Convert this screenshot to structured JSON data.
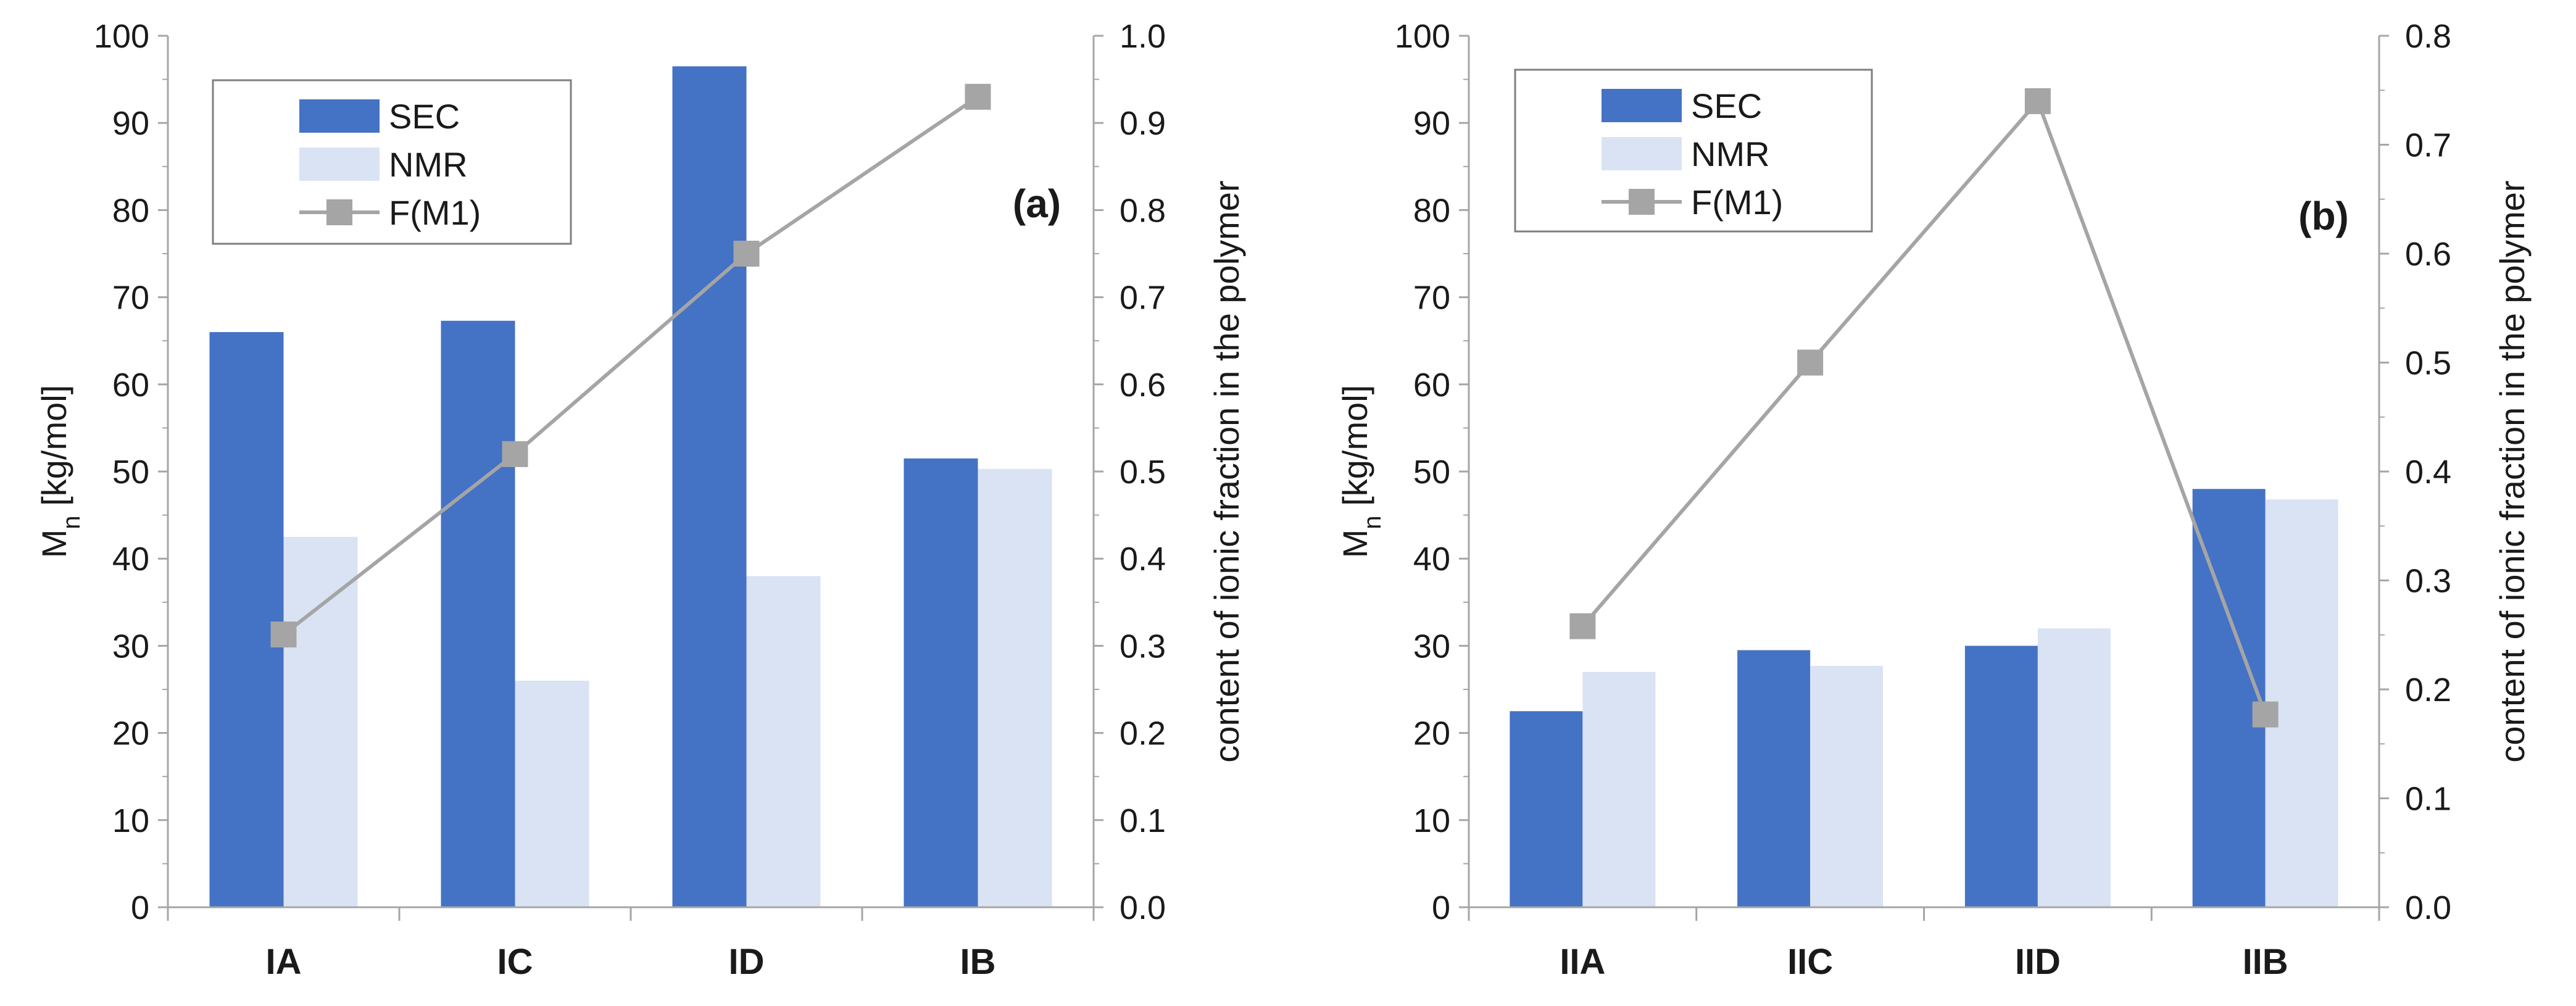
{
  "chart_data": [
    {
      "type": "bar",
      "panel_label": "(a)",
      "categories": [
        "IA",
        "IC",
        "ID",
        "IB"
      ],
      "series": [
        {
          "name": "SEC",
          "kind": "bar",
          "axis": "left",
          "color": "#4472C4",
          "values": [
            66,
            67.3,
            96.5,
            51.5
          ]
        },
        {
          "name": "NMR",
          "kind": "bar",
          "axis": "left",
          "color": "#DAE3F3",
          "values": [
            42.5,
            26,
            38,
            50.3
          ]
        },
        {
          "name": "F(M1)",
          "kind": "line",
          "axis": "right",
          "color": "#A5A5A5",
          "marker": "square",
          "values": [
            0.313,
            0.52,
            0.75,
            0.93
          ]
        }
      ],
      "ylabel_main": "M",
      "ylabel_sub": "n",
      "ylabel_unit": " [kg/mol]",
      "ylim": [
        0,
        100
      ],
      "yticks": [
        "0",
        "10",
        "20",
        "30",
        "40",
        "50",
        "60",
        "70",
        "80",
        "90",
        "100"
      ],
      "y2label": "content of ionic fraction in the polymer",
      "y2lim": [
        0,
        1.0
      ],
      "y2ticks": [
        "0.0",
        "0.1",
        "0.2",
        "0.3",
        "0.4",
        "0.5",
        "0.6",
        "0.7",
        "0.8",
        "0.9",
        "1.0"
      ],
      "legend_position": "top-left",
      "grid": false
    },
    {
      "type": "bar",
      "panel_label": "(b)",
      "categories": [
        "IIA",
        "IIC",
        "IID",
        "IIB"
      ],
      "series": [
        {
          "name": "SEC",
          "kind": "bar",
          "axis": "left",
          "color": "#4472C4",
          "values": [
            22.5,
            29.5,
            30,
            48
          ]
        },
        {
          "name": "NMR",
          "kind": "bar",
          "axis": "left",
          "color": "#DAE3F3",
          "values": [
            27,
            27.7,
            32,
            46.8
          ]
        },
        {
          "name": "F(M1)",
          "kind": "line",
          "axis": "right",
          "color": "#A5A5A5",
          "marker": "square",
          "values": [
            0.258,
            0.5,
            0.74,
            0.177
          ]
        }
      ],
      "ylabel_main": "M",
      "ylabel_sub": "n",
      "ylabel_unit": " [kg/mol]",
      "ylim": [
        0,
        100
      ],
      "yticks": [
        "0",
        "10",
        "20",
        "30",
        "40",
        "50",
        "60",
        "70",
        "80",
        "90",
        "100"
      ],
      "y2label": "content of ionic fraction in the polymer",
      "y2lim": [
        0,
        0.8
      ],
      "y2ticks": [
        "0.0",
        "0.1",
        "0.2",
        "0.3",
        "0.4",
        "0.5",
        "0.6",
        "0.7",
        "0.8"
      ],
      "legend_position": "top-left",
      "grid": false
    }
  ]
}
